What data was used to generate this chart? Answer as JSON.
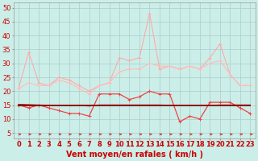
{
  "background_color": "#cceee8",
  "grid_color": "#aacccc",
  "xlabel": "Vent moyen/en rafales ( km/h )",
  "xlabel_color": "#cc0000",
  "xlabel_fontsize": 7,
  "xticks": [
    0,
    1,
    2,
    3,
    4,
    5,
    6,
    7,
    8,
    9,
    10,
    11,
    12,
    13,
    14,
    15,
    16,
    17,
    18,
    19,
    20,
    21,
    22,
    23
  ],
  "yticks": [
    5,
    10,
    15,
    20,
    25,
    30,
    35,
    40,
    45,
    50
  ],
  "ylim": [
    3,
    52
  ],
  "xlim": [
    -0.5,
    23.5
  ],
  "tick_fontsize": 6,
  "series": [
    {
      "x": [
        0,
        1,
        2,
        3,
        4,
        5,
        6,
        7,
        8,
        9,
        10,
        11,
        12,
        13,
        14,
        15,
        16,
        17,
        18,
        19,
        20,
        21,
        22,
        23
      ],
      "y": [
        21,
        34,
        23,
        22,
        25,
        24,
        22,
        20,
        22,
        23,
        32,
        31,
        32,
        48,
        28,
        29,
        28,
        29,
        28,
        32,
        37,
        26,
        22,
        22
      ],
      "color": "#ffaaaa",
      "lw": 0.8,
      "marker": "+"
    },
    {
      "x": [
        0,
        1,
        2,
        3,
        4,
        5,
        6,
        7,
        8,
        9,
        10,
        11,
        12,
        13,
        14,
        15,
        16,
        17,
        18,
        19,
        20,
        21,
        22,
        23
      ],
      "y": [
        21,
        23,
        22,
        22,
        24,
        23,
        21,
        19,
        22,
        23,
        27,
        28,
        28,
        30,
        29,
        29,
        28,
        29,
        28,
        30,
        31,
        26,
        22,
        22
      ],
      "color": "#ffbbbb",
      "lw": 0.8,
      "marker": "+"
    },
    {
      "x": [
        0,
        1,
        2,
        3,
        4,
        5,
        6,
        7,
        8,
        9,
        10,
        11,
        12,
        13,
        14,
        15,
        16,
        17,
        18,
        19,
        20,
        21,
        22,
        23
      ],
      "y": [
        15,
        14,
        15,
        14,
        13,
        12,
        12,
        11,
        19,
        19,
        19,
        17,
        18,
        20,
        19,
        19,
        9,
        11,
        10,
        16,
        16,
        16,
        14,
        12
      ],
      "color": "#ee4444",
      "lw": 0.9,
      "marker": "+"
    },
    {
      "x": [
        0,
        1,
        2,
        3,
        4,
        5,
        6,
        7,
        8,
        9,
        10,
        11,
        12,
        13,
        14,
        15,
        16,
        17,
        18,
        19,
        20,
        21,
        22,
        23
      ],
      "y": [
        14.8,
        14.8,
        14.8,
        14.8,
        14.8,
        14.8,
        14.8,
        14.8,
        14.8,
        14.8,
        14.8,
        14.8,
        14.8,
        14.8,
        14.8,
        14.8,
        14.8,
        14.8,
        14.8,
        14.8,
        14.8,
        14.8,
        14.8,
        14.8
      ],
      "color": "#000000",
      "lw": 1.4,
      "marker": null
    },
    {
      "x": [
        0,
        1,
        2,
        3,
        4,
        5,
        6,
        7,
        8,
        9,
        10,
        11,
        12,
        13,
        14,
        15,
        16,
        17,
        18,
        19,
        20,
        21,
        22,
        23
      ],
      "y": [
        15,
        15,
        15,
        15,
        15,
        15,
        15,
        15,
        15,
        15,
        15,
        15,
        15,
        15,
        15,
        15,
        15,
        15,
        15,
        15,
        15,
        15,
        15,
        15
      ],
      "color": "#cc0000",
      "lw": 1.1,
      "marker": null
    },
    {
      "x": [
        0,
        1,
        2,
        3,
        4,
        5,
        6,
        7,
        8,
        9,
        10,
        11,
        12,
        13,
        14,
        15,
        16,
        17,
        18,
        19,
        20,
        21,
        22,
        23
      ],
      "y": [
        15.2,
        15.1,
        15.0,
        14.9,
        14.8,
        14.8,
        14.9,
        14.7,
        15.0,
        15.0,
        15.0,
        15.0,
        15.0,
        15.0,
        15.0,
        14.9,
        14.8,
        14.8,
        14.8,
        14.9,
        15.0,
        15.0,
        15.0,
        15.0
      ],
      "color": "#880000",
      "lw": 1.0,
      "marker": null
    }
  ],
  "wind_arrows": {
    "x": [
      0,
      1,
      2,
      3,
      4,
      5,
      6,
      7,
      8,
      9,
      10,
      11,
      12,
      13,
      14,
      15,
      16,
      17,
      18,
      19,
      20,
      21,
      22,
      23
    ],
    "y": 4.5,
    "color": "#cc2222",
    "size": 4
  }
}
